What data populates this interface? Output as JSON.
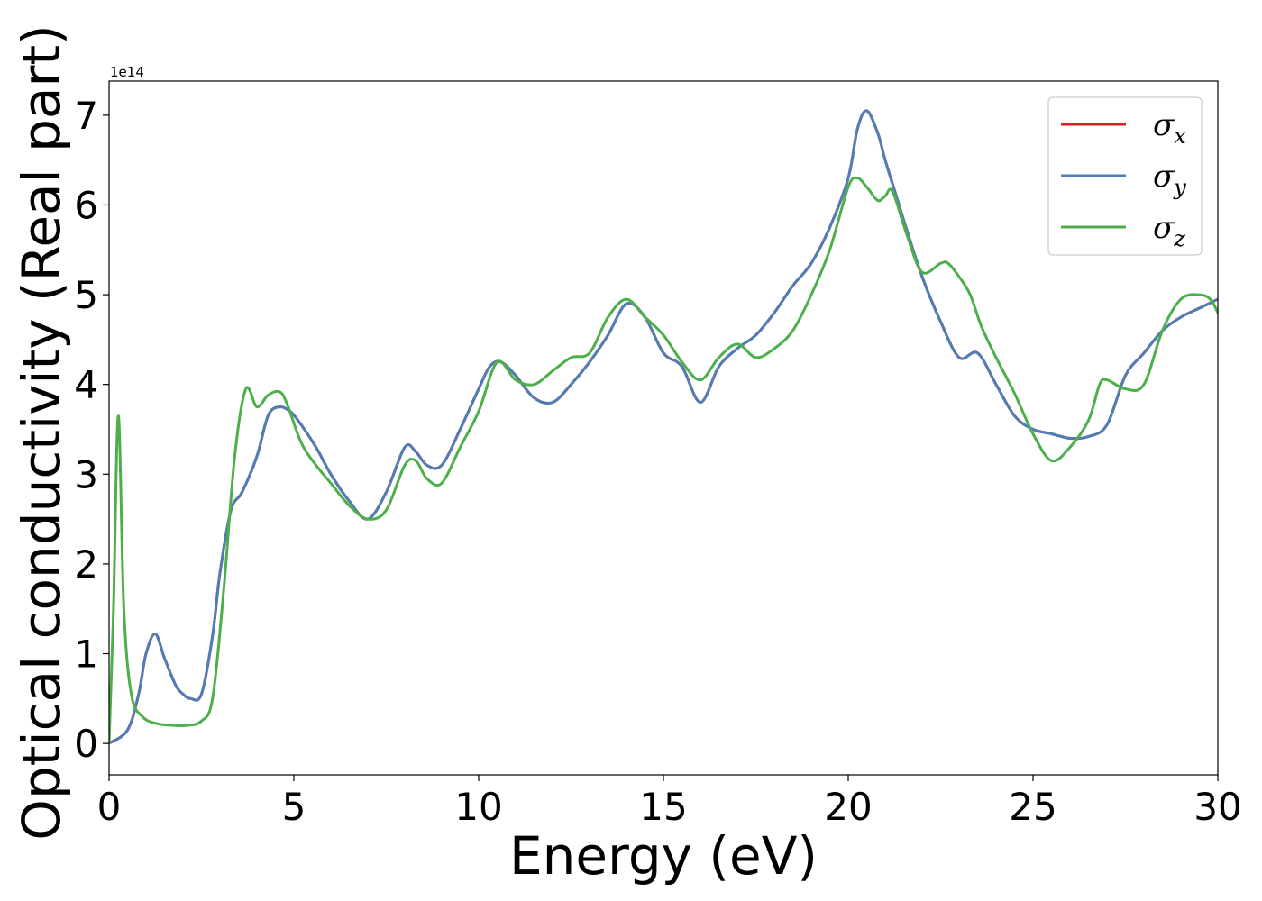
{
  "chart_data": {
    "type": "line",
    "xlabel": "Energy (eV)",
    "ylabel": "Optical conductivity (Real part)",
    "y_offset_label": "1e14",
    "xlim": [
      0,
      30
    ],
    "ylim": [
      -0.35,
      7.38
    ],
    "x_ticks": [
      0,
      5,
      10,
      15,
      20,
      25,
      30
    ],
    "y_ticks": [
      0,
      1,
      2,
      3,
      4,
      5,
      6,
      7
    ],
    "grid": false,
    "legend_position": "top-right",
    "series": [
      {
        "name": "σx",
        "name_base": "σ",
        "name_sub": "x",
        "color": "#e41a1c",
        "x": [
          0,
          0.5,
          0.8,
          1.0,
          1.25,
          1.5,
          1.8,
          2.0,
          2.2,
          2.5,
          2.8,
          3.0,
          3.3,
          3.6,
          4.0,
          4.3,
          4.6,
          4.9,
          5.2,
          5.6,
          6.0,
          6.5,
          7.0,
          7.5,
          8.0,
          8.3,
          8.6,
          9.0,
          9.5,
          10.0,
          10.3,
          10.6,
          11.0,
          11.5,
          12.0,
          12.5,
          13.0,
          13.5,
          14.0,
          14.5,
          15.0,
          15.5,
          16.0,
          16.5,
          17.0,
          17.5,
          18.0,
          18.5,
          19.0,
          19.5,
          20.0,
          20.25,
          20.5,
          20.8,
          21.0,
          21.3,
          21.6,
          22.0,
          22.5,
          23.0,
          23.5,
          24.0,
          24.5,
          25.0,
          25.5,
          26.0,
          26.5,
          27.0,
          27.5,
          28.0,
          28.5,
          29.0,
          29.5,
          30.0
        ],
        "y": [
          0,
          0.15,
          0.55,
          1.0,
          1.22,
          0.95,
          0.65,
          0.55,
          0.5,
          0.55,
          1.2,
          1.9,
          2.6,
          2.8,
          3.2,
          3.65,
          3.75,
          3.7,
          3.55,
          3.3,
          3.0,
          2.7,
          2.5,
          2.8,
          3.3,
          3.25,
          3.1,
          3.1,
          3.5,
          3.95,
          4.2,
          4.25,
          4.1,
          3.85,
          3.8,
          4.0,
          4.25,
          4.55,
          4.9,
          4.75,
          4.35,
          4.2,
          3.8,
          4.2,
          4.4,
          4.55,
          4.8,
          5.1,
          5.35,
          5.75,
          6.3,
          6.85,
          7.05,
          6.8,
          6.5,
          6.1,
          5.7,
          5.2,
          4.7,
          4.3,
          4.35,
          4.0,
          3.65,
          3.5,
          3.45,
          3.4,
          3.42,
          3.55,
          4.1,
          4.35,
          4.6,
          4.75,
          4.85,
          4.95
        ]
      },
      {
        "name": "σy",
        "name_base": "σ",
        "name_sub": "y",
        "color": "#4f7db5",
        "x": [
          0,
          0.5,
          0.8,
          1.0,
          1.25,
          1.5,
          1.8,
          2.0,
          2.2,
          2.5,
          2.8,
          3.0,
          3.3,
          3.6,
          4.0,
          4.3,
          4.6,
          4.9,
          5.2,
          5.6,
          6.0,
          6.5,
          7.0,
          7.5,
          8.0,
          8.3,
          8.6,
          9.0,
          9.5,
          10.0,
          10.3,
          10.6,
          11.0,
          11.5,
          12.0,
          12.5,
          13.0,
          13.5,
          14.0,
          14.5,
          15.0,
          15.5,
          16.0,
          16.5,
          17.0,
          17.5,
          18.0,
          18.5,
          19.0,
          19.5,
          20.0,
          20.25,
          20.5,
          20.8,
          21.0,
          21.3,
          21.6,
          22.0,
          22.5,
          23.0,
          23.5,
          24.0,
          24.5,
          25.0,
          25.5,
          26.0,
          26.5,
          27.0,
          27.5,
          28.0,
          28.5,
          29.0,
          29.5,
          30.0
        ],
        "y": [
          0,
          0.15,
          0.55,
          1.0,
          1.22,
          0.95,
          0.65,
          0.55,
          0.5,
          0.55,
          1.2,
          1.9,
          2.6,
          2.8,
          3.2,
          3.65,
          3.75,
          3.7,
          3.55,
          3.3,
          3.0,
          2.7,
          2.5,
          2.8,
          3.3,
          3.25,
          3.1,
          3.1,
          3.5,
          3.95,
          4.2,
          4.25,
          4.1,
          3.85,
          3.8,
          4.0,
          4.25,
          4.55,
          4.9,
          4.75,
          4.35,
          4.2,
          3.8,
          4.2,
          4.4,
          4.55,
          4.8,
          5.1,
          5.35,
          5.75,
          6.3,
          6.85,
          7.05,
          6.8,
          6.5,
          6.1,
          5.7,
          5.2,
          4.7,
          4.3,
          4.35,
          4.0,
          3.65,
          3.5,
          3.45,
          3.4,
          3.42,
          3.55,
          4.1,
          4.35,
          4.6,
          4.75,
          4.85,
          4.95
        ]
      },
      {
        "name": "σz",
        "name_base": "σ",
        "name_sub": "z",
        "color": "#4daf4a",
        "x": [
          0,
          0.12,
          0.25,
          0.4,
          0.6,
          0.9,
          1.3,
          1.8,
          2.1,
          2.5,
          2.8,
          3.1,
          3.4,
          3.7,
          4.0,
          4.3,
          4.6,
          4.8,
          5.2,
          5.6,
          6.0,
          6.5,
          7.0,
          7.5,
          8.0,
          8.3,
          8.6,
          9.0,
          9.5,
          10.0,
          10.5,
          11.0,
          11.5,
          12.0,
          12.5,
          13.0,
          13.5,
          14.0,
          14.5,
          15.0,
          15.5,
          16.0,
          16.5,
          17.0,
          17.5,
          18.0,
          18.5,
          19.0,
          19.5,
          20.0,
          20.25,
          20.5,
          20.8,
          21.0,
          21.2,
          21.6,
          22.0,
          22.5,
          22.7,
          23.0,
          23.3,
          23.6,
          24.0,
          24.5,
          25.0,
          25.5,
          26.0,
          26.5,
          26.8,
          27.0,
          27.5,
          28.0,
          28.5,
          29.0,
          29.5,
          29.8,
          30.0
        ],
        "y": [
          0,
          1.5,
          3.65,
          1.5,
          0.55,
          0.3,
          0.22,
          0.2,
          0.2,
          0.25,
          0.5,
          1.7,
          3.2,
          3.95,
          3.75,
          3.88,
          3.92,
          3.8,
          3.35,
          3.1,
          2.9,
          2.65,
          2.5,
          2.6,
          3.1,
          3.15,
          2.95,
          2.9,
          3.3,
          3.7,
          4.25,
          4.05,
          4.0,
          4.15,
          4.3,
          4.35,
          4.75,
          4.95,
          4.75,
          4.55,
          4.25,
          4.05,
          4.3,
          4.45,
          4.3,
          4.4,
          4.6,
          5.0,
          5.5,
          6.2,
          6.3,
          6.2,
          6.05,
          6.1,
          6.15,
          5.65,
          5.25,
          5.35,
          5.35,
          5.2,
          5.0,
          4.65,
          4.3,
          3.9,
          3.45,
          3.15,
          3.3,
          3.6,
          4.0,
          4.05,
          3.95,
          4.0,
          4.6,
          4.95,
          5.0,
          4.95,
          4.8
        ]
      }
    ]
  }
}
